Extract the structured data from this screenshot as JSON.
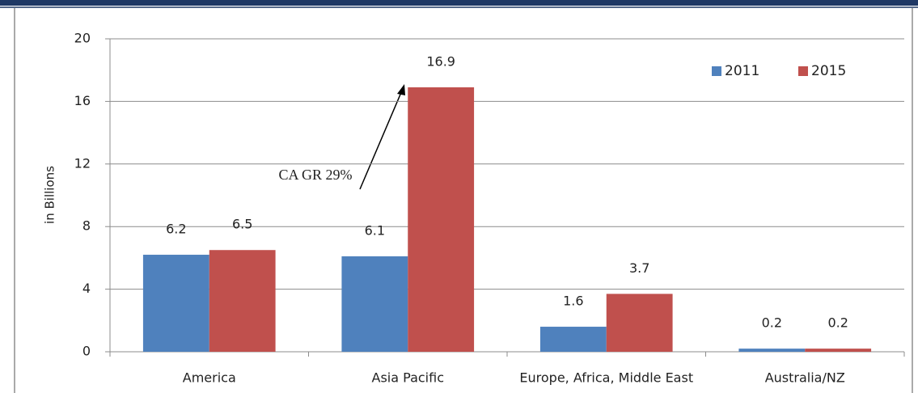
{
  "chart_data": {
    "type": "bar",
    "categories": [
      "America",
      "Asia Pacific",
      "Europe, Africa, Middle East",
      "Australia/NZ"
    ],
    "series": [
      {
        "name": "2011",
        "color": "#4f81bd",
        "values": [
          6.2,
          6.1,
          1.6,
          0.2
        ]
      },
      {
        "name": "2015",
        "color": "#c0504d",
        "values": [
          6.5,
          16.9,
          3.7,
          0.2
        ]
      }
    ],
    "y_label": "in Billions",
    "annotation": "CA GR 29%",
    "ylim": [
      0,
      20
    ],
    "yticks": [
      0,
      4,
      8,
      12,
      16,
      20
    ],
    "grid": true,
    "legend": "top-right"
  }
}
